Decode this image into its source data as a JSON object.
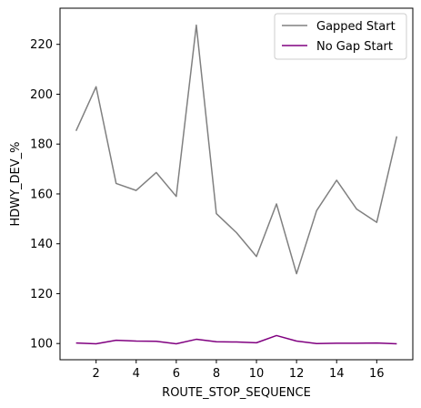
{
  "chart_data": {
    "type": "line",
    "title": "",
    "xlabel": "ROUTE_STOP_SEQUENCE",
    "ylabel": "HDWY_DEV_%",
    "xlim": [
      0.2,
      17.8
    ],
    "ylim": [
      93.5,
      234.5
    ],
    "xticks": [
      2,
      4,
      6,
      8,
      10,
      12,
      14,
      16
    ],
    "yticks": [
      100,
      120,
      140,
      160,
      180,
      200,
      220
    ],
    "grid": false,
    "legend_position": "top-right",
    "x": [
      1,
      2,
      3,
      4,
      5,
      6,
      7,
      8,
      9,
      10,
      11,
      12,
      13,
      14,
      15,
      16,
      17
    ],
    "series": [
      {
        "name": "Gapped Start",
        "color": "#808080",
        "values": [
          185.3,
          203.0,
          164.2,
          161.4,
          168.6,
          159.0,
          227.7,
          152.1,
          144.5,
          134.9,
          156.0,
          128.0,
          153.3,
          165.5,
          153.9,
          148.6,
          183.1
        ]
      },
      {
        "name": "No Gap Start",
        "color": "#800080",
        "values": [
          100.2,
          99.9,
          101.3,
          101.0,
          100.9,
          99.9,
          101.7,
          100.7,
          100.6,
          100.3,
          103.2,
          101.0,
          100.0,
          100.1,
          100.1,
          100.2,
          99.9
        ]
      }
    ]
  }
}
